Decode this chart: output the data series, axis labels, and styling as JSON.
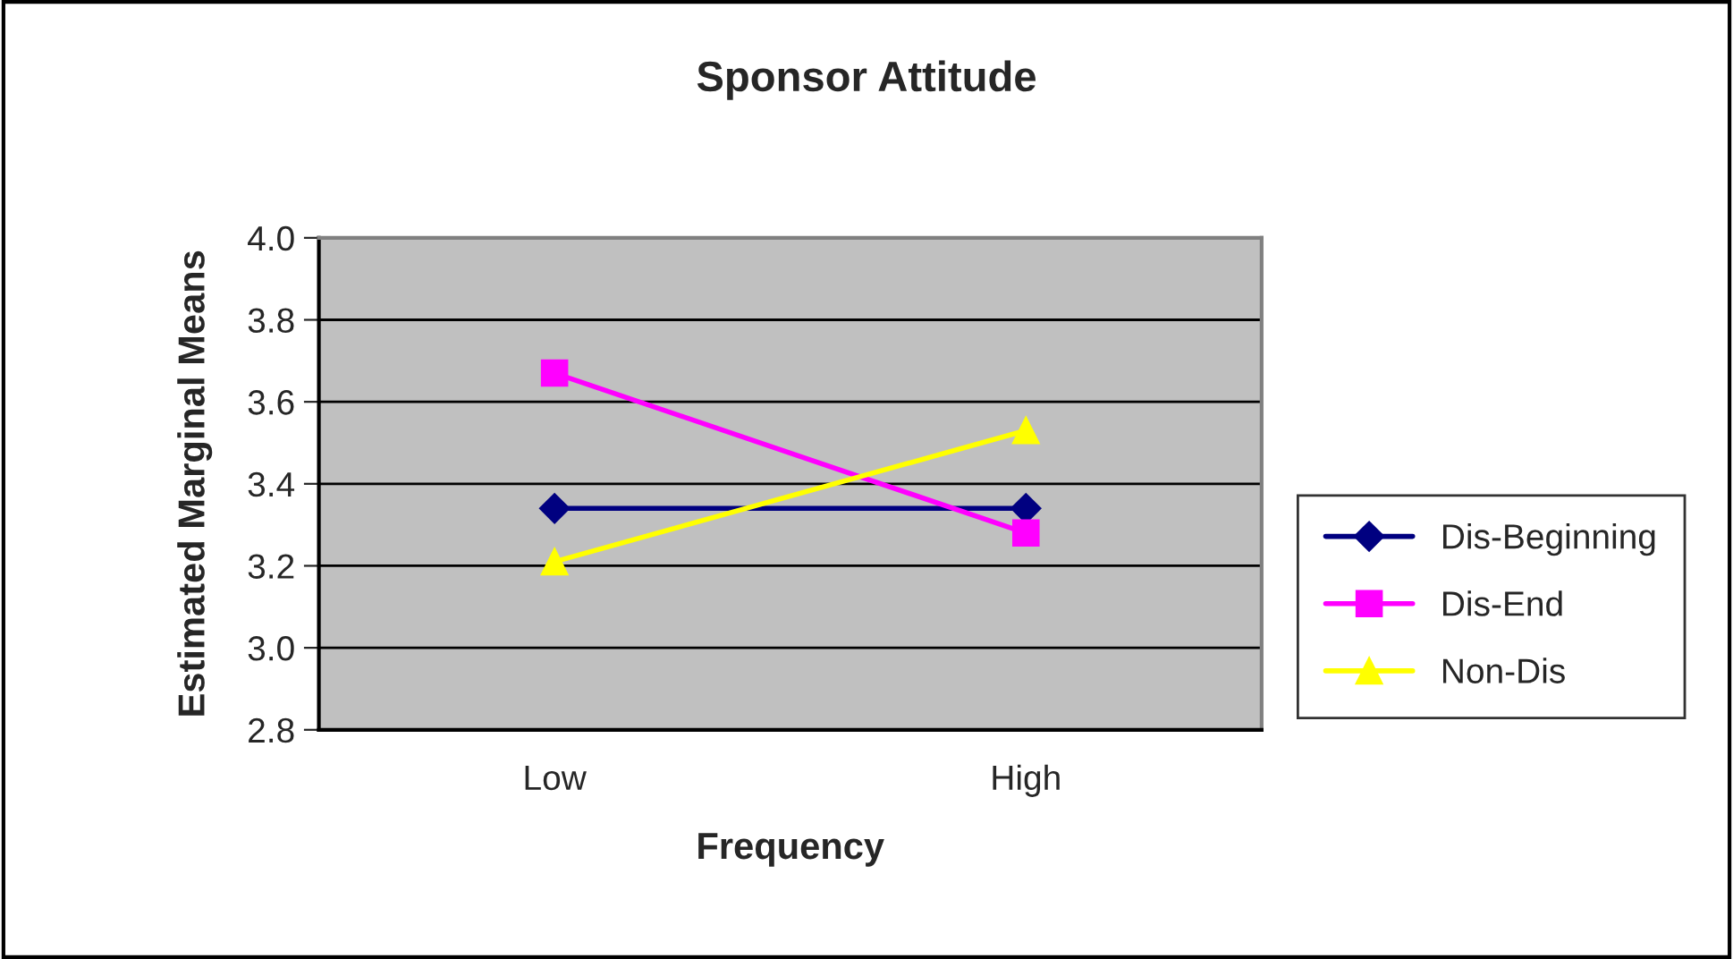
{
  "chart_data": {
    "type": "line",
    "title": "Sponsor Attitude",
    "xlabel": "Frequency",
    "ylabel": "Estimated Marginal Means",
    "categories": [
      "Low",
      "High"
    ],
    "series": [
      {
        "name": "Dis-Beginning",
        "color": "#000080",
        "marker": "diamond",
        "values": [
          3.34,
          3.34
        ]
      },
      {
        "name": "Dis-End",
        "color": "#ff00ff",
        "marker": "square",
        "values": [
          3.67,
          3.28
        ]
      },
      {
        "name": "Non-Dis",
        "color": "#ffff00",
        "marker": "triangle",
        "values": [
          3.21,
          3.53
        ]
      }
    ],
    "ylim": [
      2.8,
      4.0
    ],
    "yticks": [
      {
        "value": 2.8,
        "label": "2.8"
      },
      {
        "value": 3.0,
        "label": "3.0"
      },
      {
        "value": 3.2,
        "label": "3.2"
      },
      {
        "value": 3.4,
        "label": "3.4"
      },
      {
        "value": 3.6,
        "label": "3.6"
      },
      {
        "value": 3.8,
        "label": "3.8"
      },
      {
        "value": 4.0,
        "label": "4.0"
      }
    ],
    "grid": "y",
    "legend": "right",
    "line_style": "solid"
  }
}
